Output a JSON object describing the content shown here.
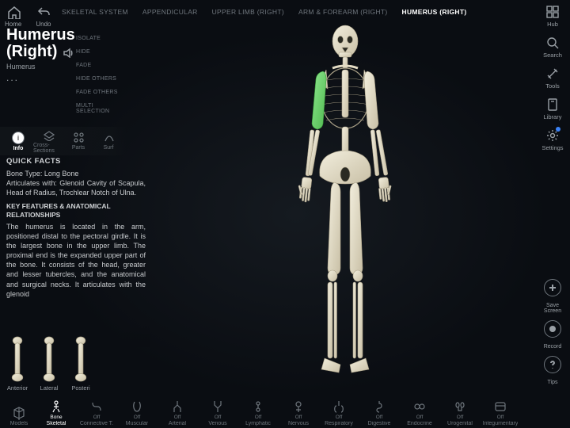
{
  "topLeft": {
    "home": "Home",
    "undo": "Undo"
  },
  "breadcrumb": [
    "SKELETAL SYSTEM",
    "APPENDICULAR",
    "UPPER LIMB (RIGHT)",
    "ARM & FOREARM (RIGHT)",
    "HUMERUS (RIGHT)"
  ],
  "breadcrumb_active": 4,
  "title": {
    "line1": "Humerus",
    "line2": "(Right)",
    "sub": "Humerus",
    "more": "..."
  },
  "ctx": [
    "ISOLATE",
    "HIDE",
    "FADE",
    "HIDE OTHERS",
    "FADE OTHERS",
    "MULTI SELECTION"
  ],
  "infoTabs": [
    {
      "label": "Info",
      "active": true
    },
    {
      "label": "Cross-Sections"
    },
    {
      "label": "Parts"
    },
    {
      "label": "Surf"
    }
  ],
  "quick": {
    "heading": "QUICK FACTS",
    "facts": "Bone Type: Long Bone\nArticulates with: Glenoid Cavity of Scapula, Head of Radius, Trochlear Notch of Ulna.",
    "kf_head": "KEY FEATURES & ANATOMICAL RELATIONSHIPS",
    "kf_body": "The humerus is located in the arm, positioned distal to the pectoral girdle. It is the largest bone in the upper limb. The proximal end is the expanded upper part of the bone. It consists of the head, greater and lesser tubercles, and the anatomical and surgical necks. It articulates with the glenoid"
  },
  "thumbs": [
    "Anterior",
    "Lateral",
    "Posteri"
  ],
  "rightRail": {
    "hub": "Hub",
    "search": "Search",
    "tools": "Tools",
    "library": "Library",
    "settings": "Settings"
  },
  "rightLower": {
    "save": "Save Screen",
    "record": "Record",
    "tips": "Tips"
  },
  "systems": [
    {
      "name": "Models",
      "state": "",
      "active": false,
      "models": true
    },
    {
      "name": "Skeletal",
      "state": "Bone",
      "active": true
    },
    {
      "name": "Connective T.",
      "state": "Off"
    },
    {
      "name": "Muscular",
      "state": "Off"
    },
    {
      "name": "Arterial",
      "state": "Off"
    },
    {
      "name": "Venous",
      "state": "Off"
    },
    {
      "name": "Lymphatic",
      "state": "Off"
    },
    {
      "name": "Nervous",
      "state": "Off"
    },
    {
      "name": "Respiratory",
      "state": "Off"
    },
    {
      "name": "Digestive",
      "state": "Off"
    },
    {
      "name": "Endocrine",
      "state": "Off"
    },
    {
      "name": "Urogenital",
      "state": "Off"
    },
    {
      "name": "Integumentary",
      "state": "Off"
    }
  ],
  "colors": {
    "bone": "#e8e3d4",
    "boneShadow": "#b8b09a",
    "highlight": "#6fd46f"
  }
}
